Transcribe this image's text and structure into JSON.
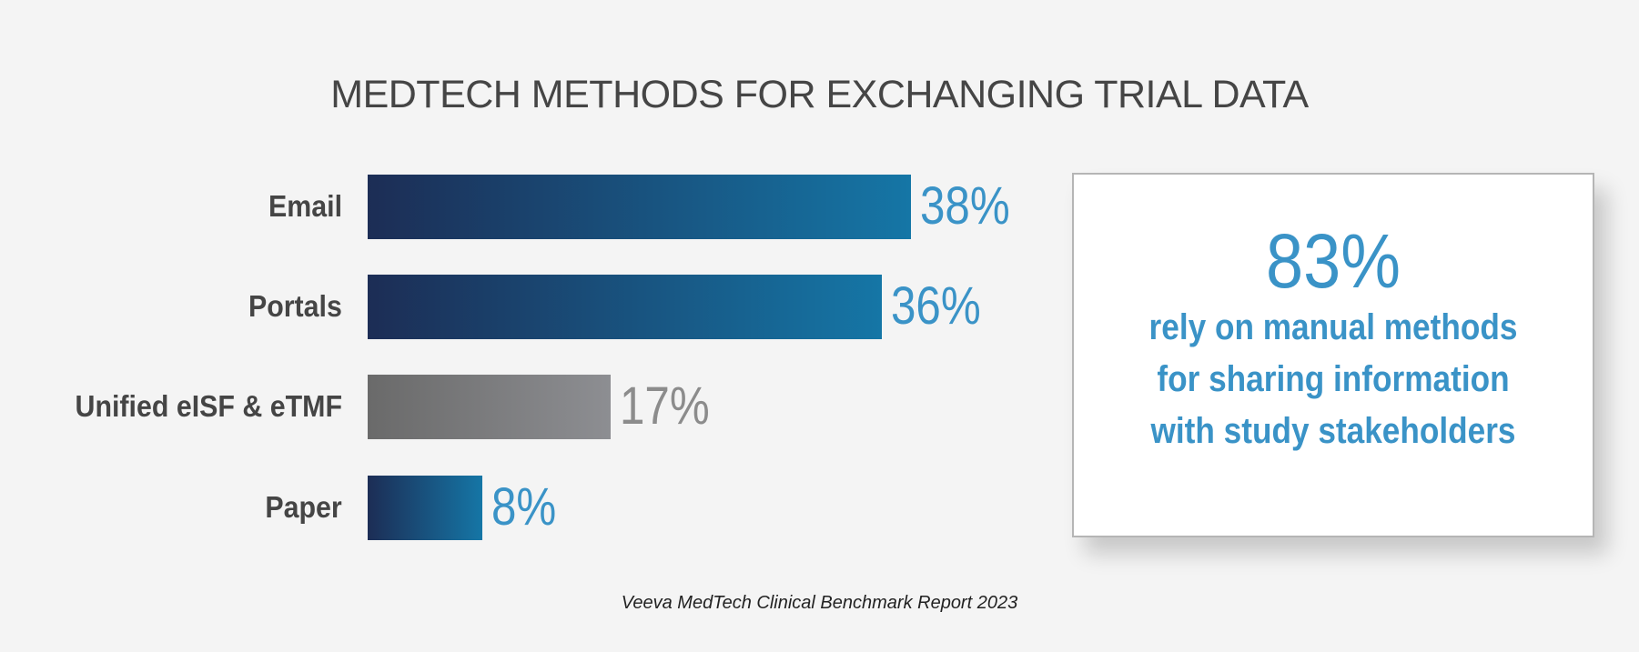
{
  "chart_data": {
    "type": "bar",
    "orientation": "horizontal",
    "title": "MEDTECH METHODS FOR EXCHANGING TRIAL DATA",
    "categories": [
      "Email",
      "Portals",
      "Unified eISF & eTMF",
      "Paper"
    ],
    "values": [
      38,
      36,
      17,
      8
    ],
    "value_labels": [
      "38%",
      "36%",
      "17%",
      "8%"
    ],
    "unit": "%",
    "xlabel": "",
    "ylabel": "",
    "xlim": [
      0,
      38
    ],
    "grid": false,
    "bar_styles": [
      "blue",
      "blue",
      "gray",
      "blue"
    ]
  },
  "colors": {
    "blue_start": "#1c2d55",
    "blue_end": "#1576a6",
    "gray_start": "#6a6a6a",
    "gray_end": "#8d8e92",
    "accent": "#3a93c7",
    "gray_label": "#8c8c8c"
  },
  "callout": {
    "stat": "83%",
    "lines": [
      "rely on manual methods",
      "for sharing information",
      "with study stakeholders"
    ]
  },
  "footer": "Veeva MedTech Clinical Benchmark Report 2023"
}
